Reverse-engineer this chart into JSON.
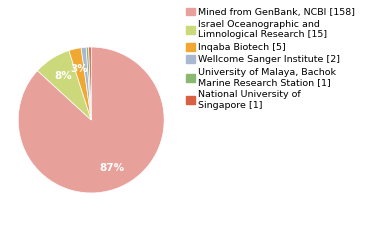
{
  "labels": [
    "Mined from GenBank, NCBI [158]",
    "Israel Oceanographic and\nLimnological Research [15]",
    "Inqaba Biotech [5]",
    "Wellcome Sanger Institute [2]",
    "University of Malaya, Bachok\nMarine Research Station [1]",
    "National University of\nSingapore [1]"
  ],
  "values": [
    158,
    15,
    5,
    2,
    1,
    1
  ],
  "colors": [
    "#e8a09a",
    "#ccd97a",
    "#f0a832",
    "#a8b8d0",
    "#8ab870",
    "#d96040"
  ],
  "autopct_threshold": 2.5,
  "background_color": "#ffffff",
  "legend_fontsize": 6.8,
  "autopct_fontsize": 7.5
}
